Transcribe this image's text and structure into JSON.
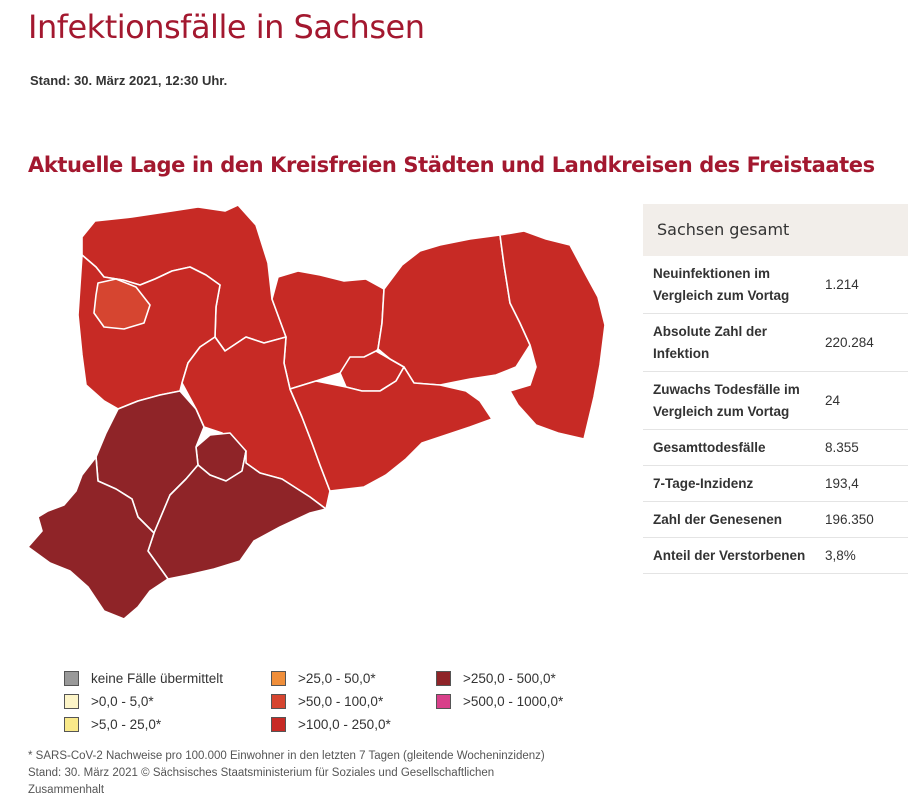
{
  "page": {
    "title": "Infektionsfälle in Sachsen",
    "stand": "Stand: 30. März 2021, 12:30 Uhr.",
    "section_title": "Aktuelle Lage in den Kreisfreien Städten und Landkreisen des Freistaates"
  },
  "stats": {
    "header": "Sachsen gesamt",
    "rows": [
      {
        "label": "Neuinfektionen im Vergleich zum Vortag",
        "value": "1.214"
      },
      {
        "label": "Absolute Zahl der Infektion",
        "value": "220.284"
      },
      {
        "label": "Zuwachs Todesfälle im Vergleich zum Vortag",
        "value": "24"
      },
      {
        "label": "Gesamttodesfälle",
        "value": "8.355"
      },
      {
        "label": "7-Tage-Inzidenz",
        "value": "193,4"
      },
      {
        "label": "Zahl der Genesenen",
        "value": "196.350"
      },
      {
        "label": "Anteil der Verstorbenen",
        "value": "3,8%"
      }
    ]
  },
  "map": {
    "colors": {
      "band_50_100": "#d64530",
      "band_100_250": "#c72a25",
      "band_250_500": "#8f2428"
    }
  },
  "legend": [
    {
      "label": "keine Fälle übermittelt",
      "color": "#999999"
    },
    {
      "label": ">0,0 - 5,0*",
      "color": "#fdf5c8"
    },
    {
      "label": ">5,0 - 25,0*",
      "color": "#f9e98a"
    },
    {
      "label": ">25,0 - 50,0*",
      "color": "#ef8e3a"
    },
    {
      "label": ">50,0 - 100,0*",
      "color": "#d64530"
    },
    {
      "label": ">100,0 - 250,0*",
      "color": "#c72a25"
    },
    {
      "label": ">250,0 - 500,0*",
      "color": "#8f2428"
    },
    {
      "label": ">500,0 - 1000,0*",
      "color": "#d8408a"
    }
  ],
  "footnote": {
    "line1": "* SARS-CoV-2 Nachweise pro 100.000 Einwohner in den letzten 7 Tagen (gleitende Wocheninzidenz)",
    "line2": "Stand: 30. März 2021 © Sächsisches Staatsministerium für Soziales und Gesellschaftlichen",
    "line3": "Zusammenhalt"
  }
}
